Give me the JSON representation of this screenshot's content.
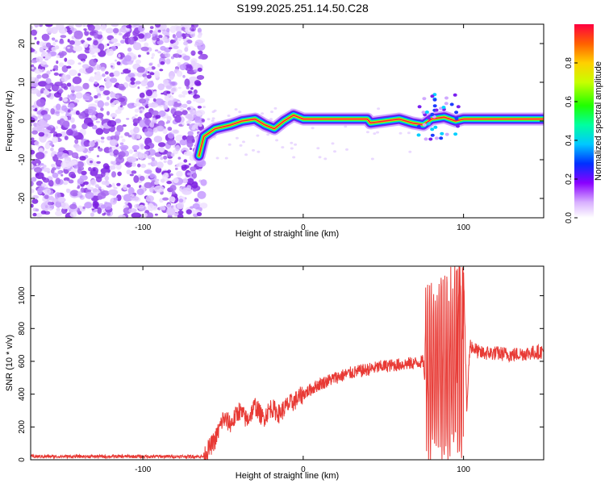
{
  "page": {
    "title": "S199.2025.251.14.50.C28"
  },
  "colors": {
    "background": "#ffffff",
    "axis": "#000000",
    "snr_line": "#e83a35",
    "scatter_noise": "#9b4fe0"
  },
  "chart_data": [
    {
      "type": "heatmap",
      "title": "S199.2025.251.14.50.C28",
      "xlabel": "Height of straight line (km)",
      "ylabel": "Frequency (Hz)",
      "xlim": [
        -170,
        150
      ],
      "ylim": [
        -25,
        25
      ],
      "xticks": [
        -100,
        0,
        100
      ],
      "yticks": [
        -20,
        -10,
        0,
        10,
        20
      ],
      "grid": false,
      "noise_region_x": [
        -170,
        -62
      ],
      "ridge": [
        {
          "x": -65,
          "y": -9
        },
        {
          "x": -62,
          "y": -4
        },
        {
          "x": -55,
          "y": -2
        },
        {
          "x": -45,
          "y": -1
        },
        {
          "x": -38,
          "y": 0
        },
        {
          "x": -30,
          "y": 0.5
        },
        {
          "x": -24,
          "y": -1
        },
        {
          "x": -18,
          "y": -2
        },
        {
          "x": -12,
          "y": 0
        },
        {
          "x": -6,
          "y": 1.5
        },
        {
          "x": 0,
          "y": 0.5
        },
        {
          "x": 20,
          "y": 0.5
        },
        {
          "x": 40,
          "y": 0.5
        },
        {
          "x": 42,
          "y": -0.5
        },
        {
          "x": 60,
          "y": 0.5
        },
        {
          "x": 68,
          "y": -0.5
        },
        {
          "x": 75,
          "y": -1
        },
        {
          "x": 80,
          "y": 0.5
        },
        {
          "x": 88,
          "y": 1
        },
        {
          "x": 95,
          "y": 0
        },
        {
          "x": 100,
          "y": 0.5
        },
        {
          "x": 150,
          "y": 0.5
        }
      ],
      "colorbar": {
        "label": "Normalized spectral amplitude",
        "min": 0.0,
        "max": 1.0,
        "ticks": [
          "0.0",
          "0.2",
          "0.4",
          "0.6",
          "0.8"
        ]
      }
    },
    {
      "type": "line",
      "xlabel": "Height of straight line (km)",
      "ylabel": "SNR (10 * v/v)",
      "xlim": [
        -170,
        150
      ],
      "ylim": [
        0,
        1180
      ],
      "xticks": [
        -100,
        0,
        100
      ],
      "yticks": [
        0,
        200,
        400,
        600,
        800,
        1000
      ],
      "grid": false,
      "series": [
        {
          "name": "SNR",
          "x": [
            -170,
            -140,
            -110,
            -80,
            -62,
            -55,
            -50,
            -45,
            -40,
            -35,
            -30,
            -25,
            -20,
            -15,
            -10,
            -5,
            0,
            10,
            20,
            30,
            40,
            50,
            60,
            70,
            75,
            78,
            80,
            82,
            84,
            86,
            88,
            90,
            92,
            94,
            96,
            98,
            100,
            102,
            104,
            110,
            120,
            130,
            140,
            150
          ],
          "values": [
            20,
            20,
            20,
            20,
            25,
            120,
            250,
            220,
            300,
            240,
            330,
            250,
            320,
            280,
            330,
            360,
            400,
            460,
            500,
            530,
            550,
            570,
            580,
            590,
            600,
            200,
            1000,
            150,
            1050,
            100,
            1000,
            80,
            950,
            120,
            1050,
            100,
            1180,
            300,
            700,
            650,
            650,
            640,
            650,
            660
          ]
        }
      ]
    }
  ]
}
